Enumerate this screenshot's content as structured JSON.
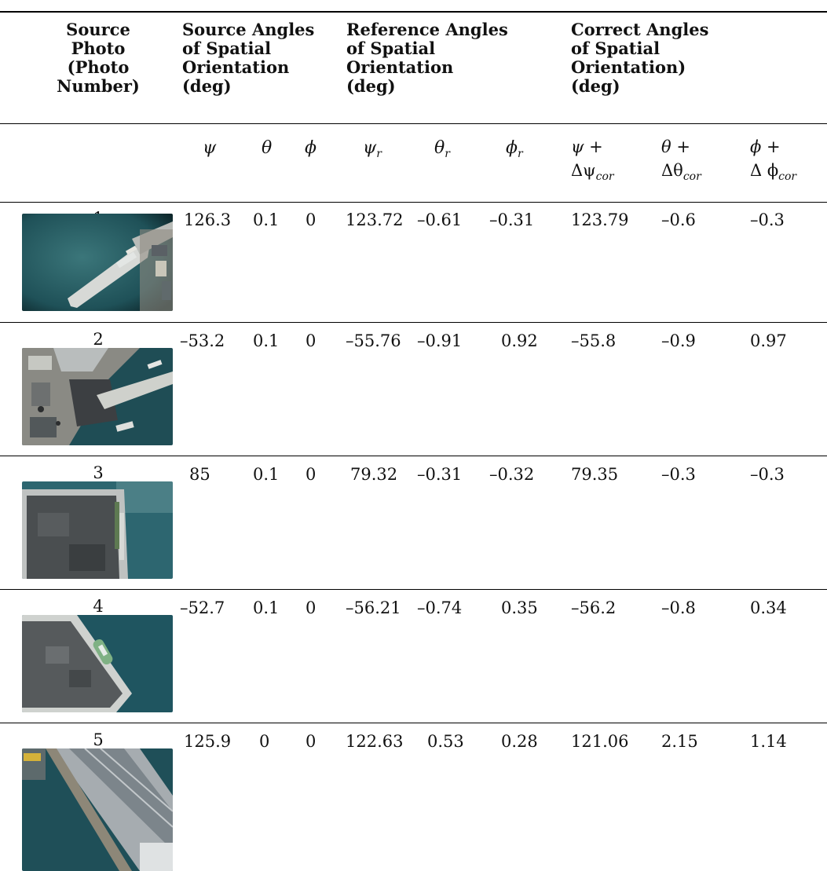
{
  "table": {
    "headers": {
      "source_photo": "Source\nPhoto\n(Photo\nNumber)",
      "source_angles": "Source Angles\nof Spatial\nOrientation\n(deg)",
      "reference_angles": "Reference Angles\nof Spatial\nOrientation\n(deg)",
      "correct_angles": "Correct Angles\nof Spatial\nOrientation)\n(deg)"
    },
    "subheaders": {
      "psi": "ψ",
      "theta": "θ",
      "phi": "ϕ",
      "psi_r": "ψ",
      "theta_r": "θ",
      "phi_r": "ϕ",
      "r_sub": "r",
      "psi_cor_top": "ψ +",
      "psi_cor_bottom": "Δψ",
      "theta_cor_top": "θ +",
      "theta_cor_bottom": "Δθ",
      "phi_cor_top": "ϕ +",
      "phi_cor_bottom": "Δ ϕ",
      "cor_sub": "cor"
    },
    "rows": [
      {
        "number": "1",
        "psi": "126.3",
        "theta": "0.1",
        "phi": "0",
        "psi_r": "123.72",
        "theta_r": "–0.61",
        "phi_r": "–0.31",
        "psi_c": "123.79",
        "theta_c": "–0.6",
        "phi_c": "–0.3",
        "photo": "pier-with-boats-aerial"
      },
      {
        "number": "2",
        "psi": "–53.2",
        "theta": "0.1",
        "phi": "0",
        "psi_r": "–55.76",
        "theta_r": "–0.91",
        "phi_r": "0.92",
        "psi_c": "–55.8",
        "theta_c": "–0.9",
        "phi_c": "0.97",
        "photo": "port-buildings-aerial"
      },
      {
        "number": "3",
        "psi": "85",
        "theta": "0.1",
        "phi": "0",
        "psi_r": "79.32",
        "theta_r": "–0.31",
        "phi_r": "–0.32",
        "psi_c": "79.35",
        "theta_c": "–0.3",
        "phi_c": "–0.3",
        "photo": "quay-corner-aerial"
      },
      {
        "number": "4",
        "psi": "–52.7",
        "theta": "0.1",
        "phi": "0",
        "psi_r": "–56.21",
        "theta_r": "–0.74",
        "phi_r": "0.35",
        "psi_c": "–56.2",
        "theta_c": "–0.8",
        "phi_c": "0.34",
        "photo": "quay-with-ship-aerial"
      },
      {
        "number": "5",
        "psi": "125.9",
        "theta": "0",
        "phi": "0",
        "psi_r": "122.63",
        "theta_r": "0.53",
        "phi_r": "0.28",
        "psi_c": "121.06",
        "theta_c": "2.15",
        "phi_c": "1.14",
        "photo": "warehouse-roof-aerial"
      }
    ]
  },
  "colors": {
    "water": "#1f5158",
    "concrete": "#c8cdcc",
    "rule": "#000000"
  }
}
